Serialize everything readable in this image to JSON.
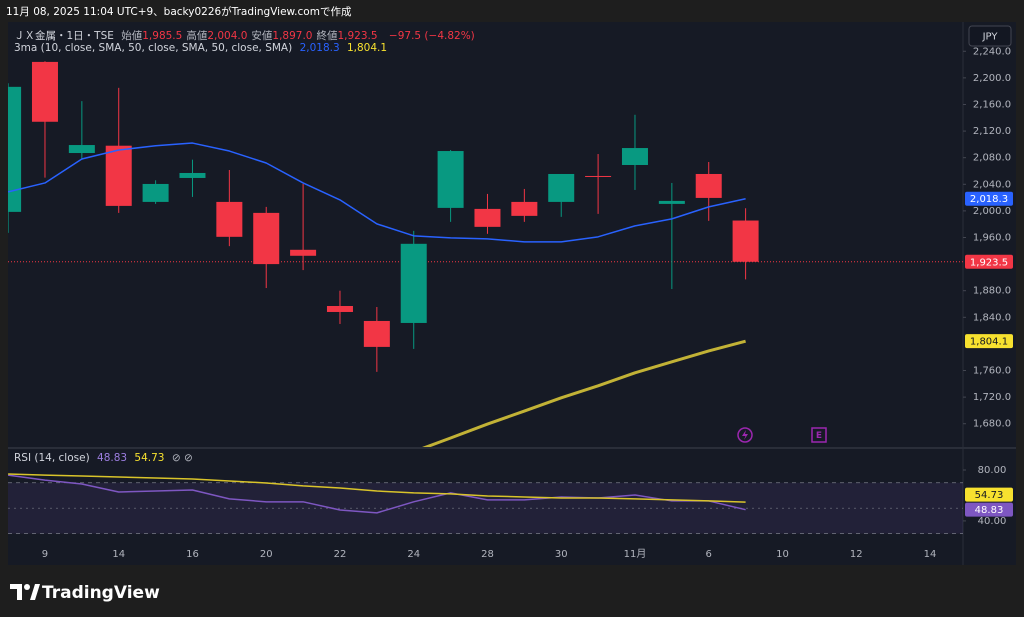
{
  "header": "11月 08, 2025 11:04 UTC+9、backy0226がTradingView.comで作成",
  "currency": "JPY",
  "logo": "TradingView",
  "chart_data": [
    {
      "type": "candlestick",
      "categories": [
        null,
        "9",
        null,
        "14",
        null,
        "16",
        null,
        "20",
        null,
        "22",
        null,
        "24",
        null,
        "28",
        null,
        "30",
        null,
        "11月",
        null,
        "6",
        null,
        "10",
        null,
        "12",
        null,
        "14"
      ],
      "open": [
        1998.5,
        2224,
        2087,
        2098,
        2013.5,
        2049.5,
        2013.5,
        1997,
        1941.5,
        1857,
        1834.5,
        1831.5,
        2004.5,
        2003,
        2013.5,
        2013.5,
        2052.5,
        2069,
        2010.5,
        2055.5,
        1985.5,
        null,
        null,
        null,
        null,
        null
      ],
      "high": [
        2192,
        2225,
        2165,
        2185,
        2046,
        2077,
        2061.5,
        2006,
        2040.5,
        1880,
        1855.5,
        1970,
        2091.5,
        2025.5,
        2033,
        2055.5,
        2085.5,
        2144.5,
        2042,
        2073.5,
        2004,
        null,
        null,
        null,
        null,
        null
      ],
      "low": [
        1967,
        2050,
        2077,
        1997,
        2010.5,
        2021,
        1947,
        1884,
        1911,
        1830,
        1758,
        1792.5,
        1983.5,
        1965.5,
        1983.5,
        1991,
        1995.5,
        2031.5,
        1882.5,
        1985,
        1897,
        null,
        null,
        null,
        null,
        null
      ],
      "close": [
        2186.5,
        2134,
        2099,
        2007.5,
        2040.5,
        2057,
        1961,
        1920,
        1932.5,
        1848,
        1795.5,
        1950.5,
        2090,
        1976,
        1992.5,
        2055.5,
        2051,
        2094.5,
        2015,
        2019.5,
        1923.5,
        null,
        null,
        null,
        null,
        null
      ],
      "up_color": "#089981",
      "down_color": "#f23645",
      "series": [
        {
          "color": "#2962ff",
          "values": [
            2028.5,
            2042,
            2078,
            2091.5,
            2098,
            2102,
            2090,
            2072,
            2042,
            2016.5,
            1980.5,
            1962.5,
            1959.5,
            1958,
            1953.5,
            1953.5,
            1961,
            1977.5,
            1988,
            2006,
            2018.3,
            null,
            null,
            null,
            null,
            null
          ]
        },
        {
          "color": "#c2b236",
          "values": [
            null,
            null,
            null,
            null,
            null,
            null,
            null,
            null,
            null,
            null,
            null,
            1638,
            1658.5,
            1679.5,
            1699,
            1719,
            1737,
            1756.5,
            1773,
            1789.5,
            1804.1,
            null,
            null,
            null,
            null,
            null
          ]
        }
      ],
      "ylim": [
        1645,
        2284
      ],
      "yticks": [
        {
          "value": 1680,
          "label": "1,680.0"
        },
        {
          "value": 1720,
          "label": "1,720.0"
        },
        {
          "value": 1760,
          "label": "1,760.0"
        },
        {
          "value": 1840,
          "label": "1,840.0"
        },
        {
          "value": 1880,
          "label": "1,880.0"
        },
        {
          "value": 1960,
          "label": "1,960.0"
        },
        {
          "value": 2000,
          "label": "2,000.0"
        },
        {
          "value": 2040,
          "label": "2,040.0"
        },
        {
          "value": 2080,
          "label": "2,080.0"
        },
        {
          "value": 2120,
          "label": "2,120.0"
        },
        {
          "value": 2160,
          "label": "2,160.0"
        },
        {
          "value": 2200,
          "label": "2,200.0"
        },
        {
          "value": 2240,
          "label": "2,240.0"
        }
      ],
      "price_line": 1923.5,
      "badges": [
        {
          "value": 2018.3,
          "label": "2,018.3",
          "color": "#2962ff",
          "text_color": "#ffffff"
        },
        {
          "value": 1923.5,
          "label": "1,923.5",
          "color": "#f23645",
          "text_color": "#ffffff"
        },
        {
          "value": 1804.1,
          "label": "1,804.1",
          "color": "#f7e12f",
          "text_color": "#131722"
        }
      ],
      "legend": {
        "symbol": "ＪＸ金属・1日・TSE",
        "fields": [
          {
            "label": "始値",
            "value": "1,985.5"
          },
          {
            "label": "高値",
            "value": "2,004.0"
          },
          {
            "label": "安値",
            "value": "1,897.0"
          },
          {
            "label": "終値",
            "value": "1,923.5"
          }
        ],
        "change": "−97.5 (−4.82%)",
        "indicator": "3ma (10, close, SMA, 50, close, SMA, 50, close, SMA)",
        "indicator_values": [
          "2,018.3",
          "1,804.1"
        ]
      },
      "event_marker": "E"
    },
    {
      "type": "line",
      "title": "RSI (14, close)",
      "legend_values": [
        "48.83",
        "54.73"
      ],
      "series": [
        {
          "color": "#7e57c2",
          "values": [
            76,
            72,
            69,
            62.7,
            63.5,
            64.3,
            57.3,
            55,
            55,
            48.6,
            46.3,
            55,
            62,
            56.5,
            56.5,
            58.8,
            58,
            60.4,
            55.7,
            55.7,
            48.83,
            null,
            null,
            null,
            null,
            null
          ]
        },
        {
          "color": "#d9c42a",
          "values": [
            76.9,
            76,
            75.3,
            74.5,
            73.7,
            72.9,
            71.4,
            69.8,
            67.5,
            65.9,
            63.5,
            62,
            61.2,
            59.6,
            58.8,
            58,
            58,
            57.3,
            56.5,
            55.7,
            54.73,
            null,
            null,
            null,
            null,
            null
          ]
        }
      ],
      "ylim": [
        25,
        96.5
      ],
      "yticks": [
        {
          "value": 40,
          "label": "40.00"
        },
        {
          "value": 80,
          "label": "80.00"
        }
      ],
      "band": [
        30,
        70
      ],
      "midline": 50,
      "badges": [
        {
          "value": 54.73,
          "label": "54.73",
          "color": "#f7e12f",
          "text_color": "#131722"
        },
        {
          "value": 48.83,
          "label": "48.83",
          "color": "#7e57c2",
          "text_color": "#ffffff"
        }
      ]
    }
  ]
}
